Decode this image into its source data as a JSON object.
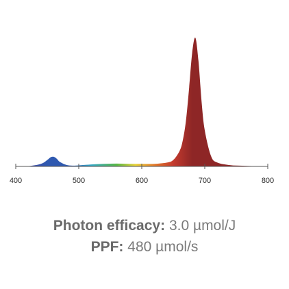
{
  "chart_data": {
    "type": "area",
    "title": "",
    "xlabel": "",
    "ylabel": "",
    "xlim": [
      400,
      800
    ],
    "ylim": [
      0,
      1
    ],
    "x_ticks": [
      400,
      500,
      600,
      700,
      800
    ],
    "grid": false,
    "series": [
      {
        "x": [
          400,
          420,
          440,
          450,
          455,
          460,
          465,
          470,
          480,
          490,
          500,
          520,
          540,
          560,
          580,
          600,
          620,
          640,
          650,
          660,
          665,
          670,
          675,
          680,
          685,
          690,
          695,
          700,
          710,
          720,
          740,
          760,
          780,
          800
        ],
        "values": [
          0.0,
          0.002,
          0.02,
          0.05,
          0.07,
          0.075,
          0.06,
          0.035,
          0.012,
          0.006,
          0.008,
          0.015,
          0.02,
          0.022,
          0.02,
          0.02,
          0.02,
          0.03,
          0.05,
          0.12,
          0.2,
          0.35,
          0.6,
          0.88,
          1.0,
          0.82,
          0.5,
          0.28,
          0.08,
          0.03,
          0.01,
          0.005,
          0.002,
          0.0
        ]
      }
    ],
    "colors": {
      "violet": "#4b3f9c",
      "blue": "#2f59b0",
      "cyan": "#35a8c4",
      "green": "#5ab848",
      "yellow": "#e8d23a",
      "orange": "#e27a2c",
      "red": "#c43a2e",
      "deep_red": "#8e2626",
      "axis": "#555555"
    }
  },
  "specs": {
    "efficacy_label": "Photon efficacy:",
    "efficacy_value": "3.0 µmol/J",
    "ppf_label": "PPF:",
    "ppf_value": "480 µmol/s"
  }
}
